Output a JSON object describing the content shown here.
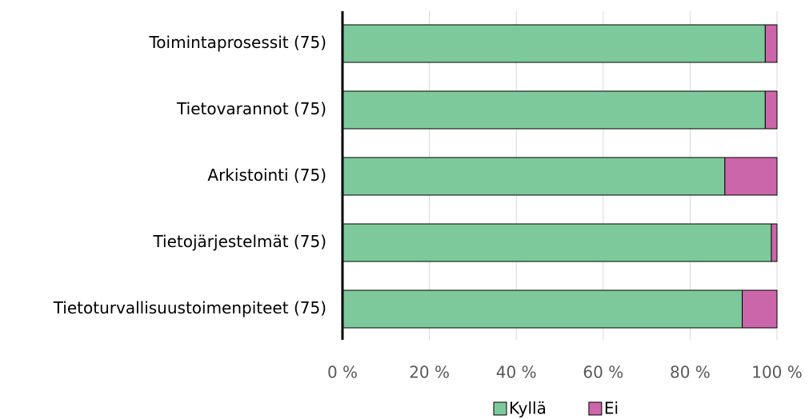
{
  "chart_data": {
    "type": "stacked_barh",
    "categories": [
      "Toimintaprosessit (75)",
      "Tietovarannot (75)",
      "Arkistointi (75)",
      "Tietojärjestelmät (75)",
      "Tietoturvallisuustoimenpiteet (75)"
    ],
    "series": [
      {
        "name": "Kyllä",
        "color": "#7dc99b",
        "values": [
          97.3,
          97.3,
          88.0,
          98.7,
          92.0
        ]
      },
      {
        "name": "Ei",
        "color": "#cc66aa",
        "values": [
          2.7,
          2.7,
          12.0,
          1.3,
          8.0
        ]
      }
    ],
    "xlim": [
      0,
      100
    ],
    "xticks": [
      {
        "value": 0,
        "label": "0 %"
      },
      {
        "value": 20,
        "label": "20 %"
      },
      {
        "value": 40,
        "label": "40 %"
      },
      {
        "value": 60,
        "label": "60 %"
      },
      {
        "value": 80,
        "label": "80 %"
      },
      {
        "value": 100,
        "label": "100 %"
      }
    ],
    "grid": true,
    "legend": "bottom"
  }
}
